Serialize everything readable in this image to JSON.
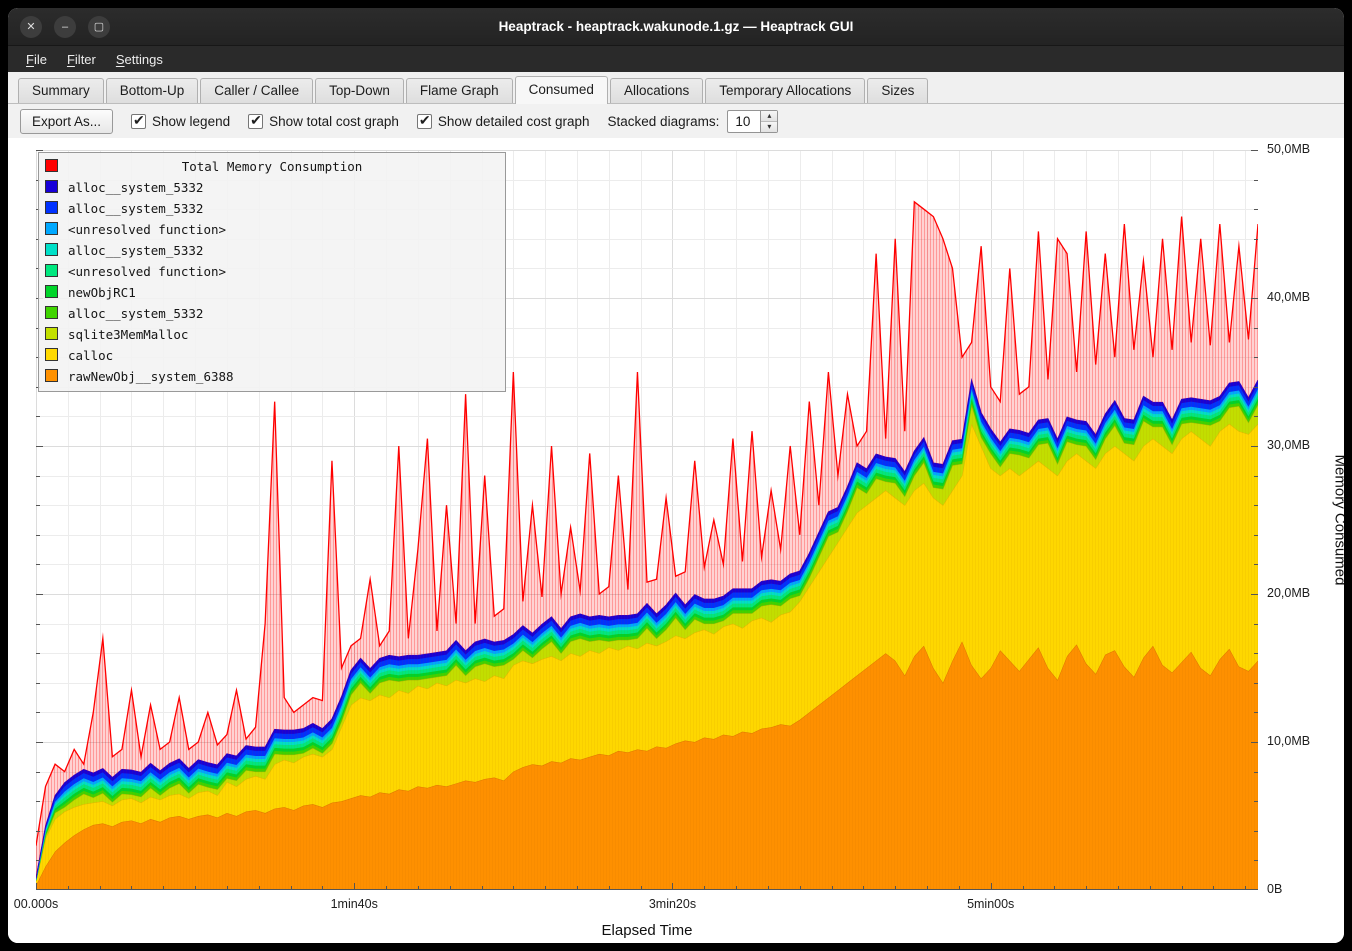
{
  "window": {
    "title": "Heaptrack - heaptrack.wakunode.1.gz — Heaptrack GUI",
    "controls": [
      {
        "name": "close",
        "glyph": "✕"
      },
      {
        "name": "minimize",
        "glyph": "–"
      },
      {
        "name": "maximize",
        "glyph": "▢"
      }
    ]
  },
  "menubar": {
    "items": [
      {
        "label": "File",
        "accel_index": 0
      },
      {
        "label": "Filter",
        "accel_index": 0
      },
      {
        "label": "Settings",
        "accel_index": 0
      }
    ]
  },
  "tabs": [
    {
      "label": "Summary",
      "active": false
    },
    {
      "label": "Bottom-Up",
      "active": false
    },
    {
      "label": "Caller / Callee",
      "active": false
    },
    {
      "label": "Top-Down",
      "active": false
    },
    {
      "label": "Flame Graph",
      "active": false
    },
    {
      "label": "Consumed",
      "active": true
    },
    {
      "label": "Allocations",
      "active": false
    },
    {
      "label": "Temporary Allocations",
      "active": false
    },
    {
      "label": "Sizes",
      "active": false
    }
  ],
  "toolbar": {
    "export_button": "Export As...",
    "checkboxes": [
      {
        "label": "Show legend",
        "checked": true
      },
      {
        "label": "Show total cost graph",
        "checked": true
      },
      {
        "label": "Show detailed cost graph",
        "checked": true
      }
    ],
    "stacked_label": "Stacked diagrams:",
    "stacked_value": "10",
    "spin_up": "▴",
    "spin_down": "▾"
  },
  "legend": {
    "title": "Total Memory Consumption",
    "title_color": "#ff0000",
    "items": [
      {
        "label": "alloc__system_5332",
        "color": "#1800d8"
      },
      {
        "label": "alloc__system_5332",
        "color": "#0031ff"
      },
      {
        "label": "<unresolved function>",
        "color": "#00a8ff"
      },
      {
        "label": "alloc__system_5332",
        "color": "#00e0c8"
      },
      {
        "label": "<unresolved function>",
        "color": "#00e87f"
      },
      {
        "label": "newObjRC1",
        "color": "#00d42a"
      },
      {
        "label": "alloc__system_5332",
        "color": "#3fd400"
      },
      {
        "label": "sqlite3MemMalloc",
        "color": "#c3e000"
      },
      {
        "label": "calloc",
        "color": "#ffd900"
      },
      {
        "label": "rawNewObj__system_6388",
        "color": "#ff9100"
      }
    ]
  },
  "axes": {
    "x_title": "Elapsed Time",
    "y_title": "Memory Consumed",
    "x_max": 384,
    "y_max": 50,
    "x_ticks": [
      {
        "t": 0,
        "label": "00.000s"
      },
      {
        "t": 100,
        "label": "1min40s"
      },
      {
        "t": 200,
        "label": "3min20s"
      },
      {
        "t": 300,
        "label": "5min00s"
      }
    ],
    "y_ticks": [
      {
        "v": 0,
        "label": "0B"
      },
      {
        "v": 10,
        "label": "10,0MB"
      },
      {
        "v": 20,
        "label": "20,0MB"
      },
      {
        "v": 30,
        "label": "30,0MB"
      },
      {
        "v": 40,
        "label": "40,0MB"
      },
      {
        "v": 50,
        "label": "50,0MB"
      }
    ]
  },
  "chart_data": {
    "type": "area",
    "stacked": true,
    "unit": "MB",
    "x_unit": "seconds",
    "x_start": 0,
    "x_step": 3,
    "n_points": 129,
    "note": "series listed bottom-to-top of the stack; 'tops' are cumulative stack heights in MB, 'thickness' is layer thickness in MB",
    "series": [
      {
        "name": "rawNewObj__system_6388",
        "color": "#ff9100",
        "edge": "#e07800",
        "tops": [
          0.3,
          1.6,
          2.6,
          3.2,
          3.7,
          4.1,
          4.4,
          4.5,
          4.3,
          4.6,
          4.7,
          4.5,
          4.8,
          4.6,
          4.9,
          5.0,
          4.8,
          5.0,
          5.1,
          4.9,
          5.2,
          5.0,
          5.3,
          5.4,
          5.2,
          5.5,
          5.6,
          5.4,
          5.7,
          5.8,
          5.6,
          5.9,
          6.0,
          6.2,
          6.4,
          6.3,
          6.6,
          6.5,
          6.8,
          6.7,
          7.0,
          6.9,
          7.1,
          7.0,
          7.2,
          7.4,
          7.3,
          7.5,
          7.6,
          7.4,
          8.0,
          8.3,
          8.5,
          8.4,
          8.7,
          8.6,
          8.9,
          8.8,
          9.0,
          9.2,
          9.1,
          9.4,
          9.3,
          9.5,
          9.4,
          9.7,
          9.6,
          9.9,
          10.1,
          10.0,
          10.3,
          10.2,
          10.5,
          10.4,
          10.7,
          10.6,
          10.9,
          11.0,
          11.2,
          11.1,
          11.5,
          12.0,
          12.5,
          13.0,
          13.5,
          14.0,
          14.5,
          15.0,
          15.5,
          16.0,
          15.5,
          14.5,
          15.8,
          16.5,
          15.0,
          14.0,
          15.5,
          16.8,
          15.2,
          14.3,
          15.0,
          16.2,
          15.5,
          14.8,
          15.6,
          16.4,
          15.0,
          14.2,
          15.8,
          16.6,
          15.3,
          14.6,
          15.9,
          16.2,
          15.1,
          14.4,
          15.7,
          16.5,
          15.2,
          14.7,
          15.4,
          16.1,
          15.0,
          14.5,
          15.6,
          16.3,
          15.1,
          14.8,
          15.5
        ]
      },
      {
        "name": "calloc",
        "color": "#ffd900",
        "edge": "#e6b800",
        "tops": [
          0.6,
          3.5,
          4.8,
          5.3,
          5.6,
          5.8,
          5.9,
          6.0,
          5.7,
          6.1,
          6.2,
          5.9,
          6.3,
          6.1,
          6.4,
          6.5,
          6.2,
          6.6,
          6.7,
          6.4,
          7.3,
          7.0,
          7.5,
          7.7,
          7.5,
          8.5,
          8.8,
          8.6,
          9.0,
          9.2,
          9.0,
          9.5,
          11.0,
          12.5,
          13.0,
          12.8,
          13.2,
          13.0,
          13.5,
          13.3,
          13.8,
          13.6,
          14.0,
          13.8,
          14.2,
          14.0,
          14.3,
          14.1,
          14.5,
          14.3,
          15.2,
          15.5,
          15.3,
          15.6,
          15.8,
          15.5,
          16.0,
          15.8,
          16.2,
          16.0,
          16.4,
          16.2,
          16.5,
          16.3,
          16.7,
          16.5,
          16.8,
          17.2,
          17.0,
          17.4,
          17.6,
          17.3,
          17.8,
          18.0,
          17.7,
          18.2,
          18.4,
          18.1,
          18.6,
          18.8,
          19.5,
          20.5,
          21.5,
          22.5,
          23.5,
          24.5,
          25.5,
          26.0,
          26.5,
          27.0,
          26.5,
          26.0,
          27.0,
          27.5,
          26.5,
          26.0,
          27.0,
          28.0,
          31.5,
          30.0,
          28.5,
          28.0,
          28.5,
          28.0,
          28.5,
          29.0,
          28.5,
          28.0,
          29.0,
          29.5,
          29.0,
          28.5,
          29.5,
          30.0,
          29.5,
          29.0,
          30.0,
          30.5,
          30.0,
          29.5,
          30.5,
          31.0,
          30.5,
          30.0,
          31.0,
          31.5,
          31.0,
          30.8,
          31.5
        ]
      },
      {
        "name": "sqlite3MemMalloc",
        "color": "#c3e000",
        "edge": "#a2ba00",
        "thickness": [
          0.25,
          0.4,
          0.6,
          0.3,
          0.5,
          0.7,
          0.35,
          0.55,
          0.25,
          0.4,
          0.25,
          0.4,
          0.6,
          0.3,
          0.5,
          0.7,
          0.35,
          0.55,
          0.25,
          0.4,
          0.25,
          0.4,
          0.6,
          0.3,
          0.5,
          0.7,
          0.35,
          0.55,
          0.25,
          0.4,
          0.25,
          0.4,
          0.4,
          0.7,
          1.0,
          0.5,
          0.8,
          1.2,
          0.6,
          0.9,
          0.4,
          0.7,
          0.4,
          0.7,
          1.0,
          0.5,
          0.8,
          1.2,
          0.6,
          0.9,
          0.4,
          0.7,
          0.4,
          0.7,
          1.0,
          0.5,
          0.8,
          1.2,
          0.6,
          0.9,
          0.4,
          0.7,
          0.4,
          0.7,
          1.0,
          0.5,
          0.8,
          1.2,
          0.6,
          0.9,
          0.4,
          0.7,
          0.4,
          0.7,
          1.0,
          0.5,
          0.8,
          1.2,
          0.6,
          0.9,
          0.4,
          0.6,
          1.0,
          1.4,
          0.7,
          1.1,
          1.7,
          0.8,
          1.3,
          0.6,
          1.0,
          0.6,
          1.0,
          1.4,
          0.7,
          1.1,
          1.7,
          0.8,
          1.3,
          0.6,
          1.0,
          0.6,
          1.0,
          1.4,
          0.7,
          1.1,
          1.7,
          0.8,
          1.3,
          0.6,
          1.0,
          0.6,
          1.0,
          1.4,
          0.7,
          1.1,
          1.7,
          0.8,
          1.3,
          0.6,
          1.0,
          0.6,
          1.0,
          1.4,
          0.7,
          1.1,
          1.7,
          0.8,
          1.3
        ]
      },
      {
        "name": "alloc__system_5332",
        "color": "#3fd400",
        "thickness": 0.2
      },
      {
        "name": "newObjRC1",
        "color": "#00d42a",
        "thickness": 0.2
      },
      {
        "name": "<unresolved function>",
        "color": "#00e87f",
        "thickness": 0.25
      },
      {
        "name": "alloc__system_5332",
        "color": "#00e0c8",
        "thickness": 0.2
      },
      {
        "name": "<unresolved function>",
        "color": "#00a8ff",
        "thickness": 0.2
      },
      {
        "name": "alloc__system_5332",
        "color": "#0031ff",
        "thickness": 0.35
      },
      {
        "name": "alloc__system_5332",
        "color": "#1800d8",
        "thickness": 0.25
      }
    ],
    "total": {
      "name": "Total Memory Consumption",
      "color": "#ff0000",
      "tops": [
        3.0,
        7.0,
        8.5,
        8.0,
        9.5,
        8.5,
        12.0,
        17.0,
        9.0,
        9.5,
        13.5,
        9.0,
        12.5,
        9.5,
        10.0,
        13.0,
        9.5,
        10.0,
        12.0,
        9.8,
        10.5,
        13.5,
        10.2,
        11.0,
        18.0,
        33.0,
        13.0,
        12.0,
        12.5,
        13.0,
        12.8,
        29.0,
        15.0,
        16.5,
        17.0,
        21.0,
        16.5,
        17.5,
        30.0,
        17.0,
        23.0,
        30.5,
        17.5,
        26.0,
        18.0,
        33.5,
        18.0,
        28.0,
        18.5,
        19.0,
        35.0,
        19.5,
        26.0,
        19.8,
        30.0,
        20.0,
        24.5,
        20.2,
        29.5,
        20.0,
        20.5,
        28.0,
        20.3,
        35.0,
        20.8,
        21.0,
        26.5,
        21.2,
        21.5,
        29.0,
        21.8,
        25.0,
        22.0,
        30.5,
        22.2,
        31.0,
        22.5,
        27.0,
        23.0,
        30.0,
        24.0,
        33.0,
        26.0,
        35.0,
        28.0,
        33.5,
        30.0,
        31.0,
        43.0,
        30.5,
        44.0,
        31.0,
        46.5,
        46.0,
        45.5,
        44.0,
        42.0,
        36.0,
        37.0,
        43.5,
        34.0,
        33.0,
        42.0,
        33.5,
        34.0,
        44.5,
        34.5,
        44.0,
        43.0,
        35.0,
        44.5,
        35.5,
        43.0,
        36.0,
        45.0,
        36.5,
        42.5,
        36.0,
        44.0,
        36.5,
        45.5,
        37.0,
        44.0,
        36.8,
        45.0,
        37.0,
        43.5,
        37.2,
        45.0
      ]
    }
  }
}
